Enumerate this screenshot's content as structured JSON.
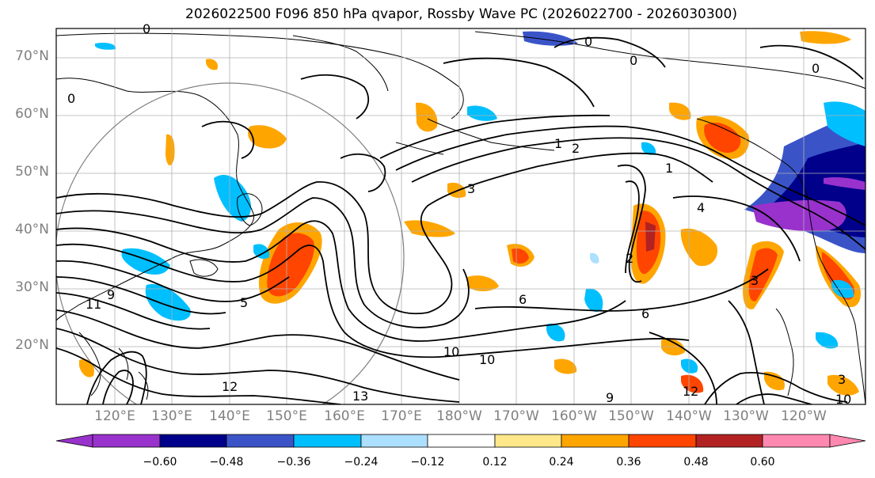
{
  "title": "2026022500 F096 850 hPa qvapor, Rossby Wave PC (2026022700 - 2026030300)",
  "lat_labels": [
    "70°N",
    "60°N",
    "50°N",
    "40°N",
    "30°N",
    "20°N"
  ],
  "lon_labels": [
    "120°E",
    "130°E",
    "140°E",
    "150°E",
    "160°E",
    "170°E",
    "180°W",
    "170°W",
    "160°W",
    "150°W",
    "140°W",
    "130°W",
    "120°W"
  ],
  "colorbar": {
    "labels": [
      "−0.60",
      "−0.48",
      "−0.36",
      "−0.24",
      "−0.12",
      "0.12",
      "0.24",
      "0.36",
      "0.48",
      "0.60"
    ],
    "colors": [
      "#9932CC",
      "#00008B",
      "#3A54C8",
      "#00BFFF",
      "#ADDFFF",
      "#FFFFFF",
      "#FFE88A",
      "#FFA500",
      "#FF4500",
      "#B22222",
      "#FF88B0"
    ]
  },
  "contour_labels": [
    "0",
    "0",
    "0",
    "0",
    "0",
    "1",
    "1",
    "2",
    "2",
    "3",
    "3",
    "4",
    "5",
    "6",
    "6",
    "9",
    "9",
    "10",
    "10",
    "11",
    "12",
    "12",
    "13",
    "3",
    "10"
  ],
  "colors": {
    "land_line": "#000000",
    "grid": "#b0b0b0",
    "contour": "#000000",
    "circle": "#808080"
  }
}
